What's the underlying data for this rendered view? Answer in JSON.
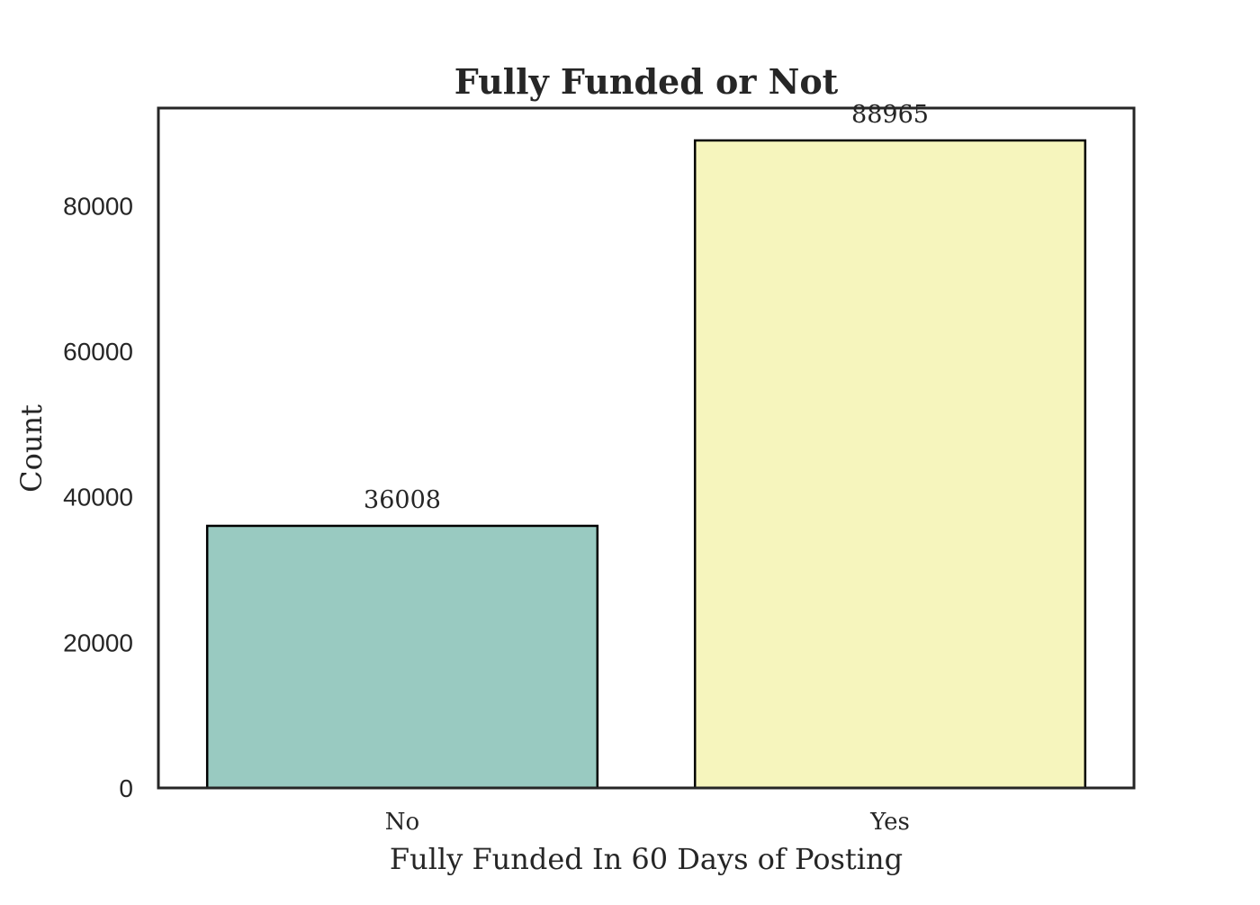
{
  "chart_data": {
    "type": "bar",
    "title": "Fully Funded or Not",
    "xlabel": "Fully Funded In 60 Days of Posting",
    "ylabel": "Count",
    "categories": [
      "No",
      "Yes"
    ],
    "values": [
      36008,
      88965
    ],
    "data_labels": [
      "36008",
      "88965"
    ],
    "ylim": [
      0,
      93413
    ],
    "yticks": [
      0,
      20000,
      40000,
      60000,
      80000
    ],
    "colors": [
      "#99cac1",
      "#f6f5bd"
    ],
    "edge_color": "#000000",
    "grid": false,
    "legend": "none"
  }
}
